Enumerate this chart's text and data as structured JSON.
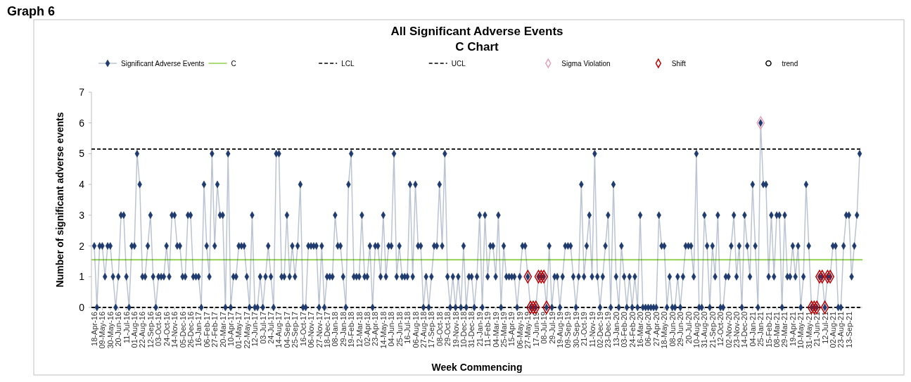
{
  "chart_data": {
    "type": "line",
    "title": "All Significant Adverse Events",
    "subtitle": "C Chart",
    "xlabel": "Week Commencing",
    "ylabel": "Number of significant adverse events",
    "annotations": [
      "Graph 6"
    ],
    "categories": [
      "18-Apr-16",
      null,
      null,
      "09-May-16",
      null,
      null,
      "30-May-16",
      null,
      null,
      "20-Jun-16",
      null,
      null,
      "11-Jul-16",
      null,
      null,
      "01-Aug-16",
      null,
      null,
      "22-Aug-16",
      null,
      null,
      "12-Sep-16",
      null,
      null,
      "03-Oct-16",
      null,
      null,
      "24-Oct-16",
      null,
      null,
      "14-Nov-16",
      null,
      null,
      "05-Dec-16",
      null,
      null,
      "26-Dec-16",
      null,
      null,
      "16-Jan-17",
      null,
      null,
      "06-Feb-17",
      null,
      null,
      "27-Feb-17",
      null,
      null,
      "20-Mar-17",
      null,
      null,
      "10-Apr-17",
      null,
      null,
      "01-May-17",
      null,
      null,
      "22-May-17",
      null,
      null,
      "12-Jun-17",
      null,
      null,
      "03-Jul-17",
      null,
      null,
      "24-Jul-17",
      null,
      null,
      "14-Aug-17",
      null,
      null,
      "04-Sep-17",
      null,
      null,
      "25-Sep-17",
      null,
      null,
      "16-Oct-17",
      null,
      null,
      "06-Nov-17",
      null,
      null,
      "27-Nov-17",
      null,
      null,
      "18-Dec-17",
      null,
      null,
      "08-Jan-18",
      null,
      null,
      "29-Jan-18",
      null,
      null,
      "19-Feb-18",
      null,
      null,
      "12-Mar-18",
      null,
      null,
      "02-Apr-18",
      null,
      null,
      "23-Apr-18",
      null,
      null,
      "14-May-18",
      null,
      null,
      "04-Jun-18",
      null,
      null,
      "25-Jun-18",
      null,
      null,
      "16-Jul-18",
      null,
      null,
      "06-Aug-18",
      null,
      null,
      "27-Aug-18",
      null,
      null,
      "17-Sep-18",
      null,
      null,
      "08-Oct-18",
      null,
      null,
      "29-Oct-18",
      null,
      null,
      "19-Nov-18",
      null,
      null,
      "10-Dec-18",
      null,
      null,
      "31-Dec-18",
      null,
      null,
      "21-Jan-19",
      null,
      null,
      "11-Feb-19",
      null,
      null,
      "04-Mar-19",
      null,
      null,
      "25-Mar-19",
      null,
      null,
      "15-Apr-19",
      null,
      null,
      "06-May-19",
      null,
      null,
      "27-May-19",
      null,
      null,
      "17-Jun-19",
      null,
      null,
      "08-Jul-19",
      null,
      null,
      "29-Jul-19",
      null,
      null,
      "19-Aug-19",
      null,
      null,
      "09-Sep-19",
      null,
      null,
      "30-Sep-19",
      null,
      null,
      "21-Oct-19",
      null,
      null,
      "11-Nov-19",
      null,
      null,
      "02-Dec-19",
      null,
      null,
      "23-Dec-19",
      null,
      null,
      "13-Jan-20",
      null,
      null,
      "03-Feb-20",
      null,
      null,
      "24-Feb-20",
      null,
      null,
      "16-Mar-20",
      null,
      null,
      "06-Apr-20",
      null,
      null,
      "27-Apr-20",
      null,
      null,
      "18-May-20",
      null,
      null,
      "08-Jun-20",
      null,
      null,
      "29-Jun-20",
      null,
      null,
      "20-Jul-20",
      null,
      null,
      "10-Aug-20",
      null,
      null,
      "31-Aug-20",
      null,
      null,
      "21-Sep-20",
      null,
      null,
      "12-Oct-20",
      null,
      null,
      "02-Nov-20",
      null,
      null,
      "23-Nov-20",
      null,
      null,
      "14-Dec-20",
      null,
      null,
      "04-Jan-21",
      null,
      null,
      "25-Jan-21",
      null,
      null,
      "15-Feb-21",
      null,
      null,
      "08-Mar-21",
      null,
      null,
      "29-Mar-21",
      null,
      null,
      "19-Apr-21",
      null,
      null,
      "10-May-21",
      null,
      null,
      "31-May-21",
      null,
      null,
      "21-Jun-21",
      null,
      null,
      "12-Jul-21",
      null,
      null,
      "02-Aug-21",
      null,
      null,
      "23-Aug-21",
      null,
      null,
      "13-Sep-21",
      null,
      null,
      null,
      null
    ],
    "series": [
      {
        "name": "Significant Adverse Events",
        "type": "line",
        "color": "#1f3b6e",
        "marker": "diamond",
        "values": [
          2,
          0,
          2,
          2,
          1,
          2,
          2,
          1,
          0,
          1,
          3,
          3,
          1,
          0,
          2,
          2,
          5,
          4,
          1,
          1,
          2,
          3,
          1,
          0,
          1,
          1,
          1,
          2,
          1,
          3,
          3,
          2,
          2,
          1,
          1,
          3,
          3,
          1,
          1,
          1,
          0,
          4,
          2,
          1,
          5,
          2,
          4,
          3,
          3,
          0,
          5,
          0,
          1,
          1,
          2,
          2,
          2,
          1,
          0,
          3,
          0,
          0,
          1,
          0,
          1,
          2,
          1,
          0,
          5,
          5,
          1,
          1,
          3,
          1,
          2,
          1,
          2,
          4,
          0,
          0,
          2,
          2,
          2,
          2,
          0,
          2,
          0,
          1,
          1,
          1,
          3,
          2,
          2,
          1,
          0,
          4,
          5,
          1,
          1,
          1,
          3,
          1,
          1,
          2,
          0,
          2,
          2,
          1,
          3,
          1,
          2,
          2,
          5,
          1,
          2,
          1,
          1,
          1,
          4,
          1,
          4,
          2,
          2,
          0,
          1,
          0,
          1,
          2,
          2,
          4,
          2,
          5,
          1,
          0,
          1,
          0,
          1,
          0,
          2,
          0,
          1,
          1,
          0,
          1,
          3,
          0,
          3,
          1,
          2,
          2,
          1,
          3,
          0,
          2,
          1,
          1,
          1,
          1,
          0,
          1,
          2,
          2,
          1,
          0,
          0,
          0,
          1,
          1,
          1,
          0,
          2,
          0,
          1,
          1,
          0,
          1,
          2,
          2,
          2,
          1,
          0,
          1,
          4,
          1,
          2,
          3,
          1,
          5,
          1,
          0,
          1,
          2,
          3,
          0,
          4,
          1,
          0,
          2,
          1,
          0,
          1,
          0,
          1,
          0,
          3,
          0,
          0,
          0,
          0,
          0,
          0,
          3,
          2,
          2,
          0,
          1,
          0,
          0,
          1,
          0,
          1,
          2,
          2,
          2,
          1,
          5,
          0,
          0,
          3,
          2,
          0,
          2,
          1,
          3,
          0,
          0,
          1,
          1,
          2,
          3,
          1,
          2,
          0,
          3,
          2,
          1,
          4,
          2,
          0,
          6,
          4,
          4,
          1,
          3,
          1,
          3,
          3,
          0,
          3,
          1,
          1,
          2,
          1,
          2,
          0,
          1,
          4,
          2,
          0,
          0,
          0,
          1,
          1,
          0,
          1,
          1,
          2,
          2,
          0,
          0,
          2,
          3,
          3,
          1,
          2,
          3,
          5
        ]
      },
      {
        "name": "Sigma Violation",
        "type": "scatter",
        "color": "#e8a0b8",
        "marker": "diamond",
        "values": [
          null,
          null,
          null,
          null,
          null,
          null,
          null,
          null,
          null,
          null,
          null,
          null,
          null,
          null,
          null,
          null,
          null,
          null,
          null,
          null,
          null,
          null,
          null,
          null,
          null,
          null,
          null,
          null,
          null,
          null,
          null,
          null,
          null,
          null,
          null,
          null,
          null,
          null,
          null,
          null,
          null,
          null,
          null,
          null,
          null,
          null,
          null,
          null,
          null,
          null,
          null,
          null,
          null,
          null,
          null,
          null,
          null,
          null,
          null,
          null,
          null,
          null,
          null,
          null,
          null,
          null,
          null,
          null,
          null,
          null,
          null,
          null,
          null,
          null,
          null,
          null,
          null,
          null,
          null,
          null,
          null,
          null,
          null,
          null,
          null,
          null,
          null,
          null,
          null,
          null,
          null,
          null,
          null,
          null,
          null,
          null,
          null,
          null,
          null,
          null,
          null,
          null,
          null,
          null,
          null,
          null,
          null,
          null,
          null,
          null,
          null,
          null,
          null,
          null,
          null,
          null,
          null,
          null,
          null,
          null,
          null,
          null,
          null,
          null,
          null,
          null,
          null,
          null,
          null,
          null,
          null,
          null,
          null,
          null,
          null,
          null,
          null,
          null,
          null,
          null,
          null,
          null,
          null,
          null,
          null,
          null,
          null,
          null,
          null,
          null,
          null,
          null,
          null,
          null,
          null,
          null,
          null,
          null,
          null,
          null,
          null,
          null,
          null,
          null,
          null,
          null,
          null,
          null,
          null,
          null,
          null,
          null,
          null,
          null,
          null,
          null,
          null,
          null,
          null,
          null,
          null,
          null,
          null,
          null,
          null,
          null,
          null,
          null,
          null,
          null,
          null,
          null,
          null,
          null,
          null,
          null,
          null,
          null,
          null,
          null,
          null,
          null,
          null,
          null,
          null,
          null,
          null,
          null,
          null,
          null,
          null,
          null,
          null,
          null,
          null,
          null,
          null,
          null,
          null,
          null,
          null,
          null,
          null,
          null,
          null,
          null,
          null,
          null,
          null,
          null,
          null,
          null,
          null,
          null,
          null,
          null,
          null,
          null,
          null,
          null,
          null,
          null,
          null,
          null,
          null,
          null,
          null,
          null,
          null,
          6,
          null,
          null,
          null,
          null,
          null,
          null,
          null,
          null,
          null,
          null,
          null,
          null,
          null,
          null,
          null,
          null,
          null,
          null,
          null,
          null,
          null,
          null,
          null,
          null,
          null,
          null,
          null,
          null,
          null,
          null,
          null,
          null,
          null,
          null,
          null,
          null,
          null
        ]
      },
      {
        "name": "Shift",
        "type": "scatter",
        "color": "#c00000",
        "marker": "diamond",
        "values": [
          null,
          null,
          null,
          null,
          null,
          null,
          null,
          null,
          null,
          null,
          null,
          null,
          null,
          null,
          null,
          null,
          null,
          null,
          null,
          null,
          null,
          null,
          null,
          null,
          null,
          null,
          null,
          null,
          null,
          null,
          null,
          null,
          null,
          null,
          null,
          null,
          null,
          null,
          null,
          null,
          null,
          null,
          null,
          null,
          null,
          null,
          null,
          null,
          null,
          null,
          null,
          null,
          null,
          null,
          null,
          null,
          null,
          null,
          null,
          null,
          null,
          null,
          null,
          null,
          null,
          null,
          null,
          null,
          null,
          null,
          null,
          null,
          null,
          null,
          null,
          null,
          null,
          null,
          null,
          null,
          null,
          null,
          null,
          null,
          null,
          null,
          null,
          null,
          null,
          null,
          null,
          null,
          null,
          null,
          null,
          null,
          null,
          null,
          null,
          null,
          null,
          null,
          null,
          null,
          null,
          null,
          null,
          null,
          null,
          null,
          null,
          null,
          null,
          null,
          null,
          null,
          null,
          null,
          null,
          null,
          null,
          null,
          null,
          null,
          null,
          null,
          null,
          null,
          null,
          null,
          null,
          null,
          null,
          null,
          null,
          null,
          null,
          null,
          null,
          null,
          null,
          null,
          null,
          null,
          null,
          null,
          null,
          null,
          null,
          null,
          null,
          null,
          null,
          null,
          null,
          null,
          null,
          null,
          null,
          null,
          null,
          null,
          1,
          0,
          0,
          0,
          1,
          1,
          1,
          0,
          null,
          null,
          null,
          null,
          null,
          null,
          null,
          null,
          null,
          null,
          null,
          null,
          null,
          null,
          null,
          null,
          null,
          null,
          null,
          null,
          null,
          null,
          null,
          null,
          null,
          null,
          null,
          null,
          null,
          null,
          null,
          null,
          null,
          null,
          null,
          null,
          null,
          null,
          null,
          null,
          null,
          null,
          null,
          null,
          null,
          null,
          null,
          null,
          null,
          null,
          null,
          null,
          null,
          null,
          null,
          null,
          null,
          null,
          null,
          null,
          null,
          null,
          null,
          null,
          null,
          null,
          null,
          null,
          null,
          null,
          null,
          null,
          null,
          null,
          null,
          null,
          null,
          null,
          null,
          null,
          null,
          null,
          null,
          null,
          null,
          null,
          null,
          null,
          null,
          null,
          null,
          null,
          null,
          null,
          null,
          null,
          null,
          null,
          0,
          0,
          0,
          1,
          1,
          0,
          1,
          1,
          null,
          null,
          null,
          null,
          null,
          null,
          null,
          null,
          null,
          null,
          null
        ]
      },
      {
        "name": "trend",
        "type": "scatter",
        "color": "#000000",
        "marker": "circle",
        "values": [
          null,
          null,
          null,
          null,
          null,
          null,
          null,
          null,
          null,
          null,
          null,
          null,
          null,
          null,
          null,
          null,
          null,
          null,
          null,
          null,
          null,
          null,
          null,
          null,
          null,
          null,
          null,
          null,
          null,
          null,
          null,
          null,
          null,
          null,
          null,
          null,
          null,
          null,
          null,
          null,
          null,
          null,
          null,
          null,
          null,
          null,
          null,
          null,
          null,
          null,
          null,
          null,
          null,
          null,
          null,
          null,
          null,
          null,
          null,
          null,
          null,
          null,
          null,
          null,
          null,
          null,
          null,
          null,
          null,
          null,
          null,
          null,
          null,
          null,
          null,
          null,
          null,
          null,
          null,
          null,
          null,
          null,
          null,
          null,
          null,
          null,
          null,
          null,
          null,
          null,
          null,
          null,
          null,
          null,
          null,
          null,
          null,
          null,
          null,
          null,
          null,
          null,
          null,
          null,
          null,
          null,
          null,
          null,
          null,
          null,
          null,
          null,
          null,
          null,
          null,
          null,
          null,
          null,
          null,
          null,
          null,
          null,
          null,
          null,
          null,
          null,
          null,
          null,
          null,
          null,
          null,
          null,
          null,
          null,
          null,
          null,
          null,
          null,
          null,
          null,
          null,
          null,
          null,
          null,
          null,
          null,
          null,
          null,
          null,
          null,
          null,
          null,
          null,
          null,
          null,
          null,
          null,
          null,
          null,
          null,
          null,
          null,
          null,
          null,
          null,
          null,
          null,
          null,
          null,
          null,
          null,
          null,
          null,
          null,
          null,
          null,
          null,
          null,
          null,
          null,
          null,
          null,
          null,
          null,
          null,
          null,
          null,
          null,
          null,
          null,
          null,
          null,
          null,
          null,
          null,
          null,
          null,
          null,
          null,
          null,
          null,
          null,
          null,
          null,
          null,
          null,
          null,
          null,
          null,
          null,
          null,
          null,
          null,
          null,
          null,
          null,
          null,
          null,
          null,
          null,
          null,
          null,
          null,
          null,
          null,
          null,
          null,
          null,
          null,
          null,
          null,
          null,
          null,
          null,
          null,
          null,
          null,
          null,
          null,
          null,
          null,
          null,
          null,
          null,
          null,
          null,
          null,
          null,
          null,
          null,
          null,
          null,
          null,
          null,
          null,
          null,
          null,
          null,
          null,
          null,
          null,
          null,
          null,
          null,
          null,
          null,
          null,
          null,
          null,
          null,
          null,
          null,
          null,
          null,
          null,
          null,
          null,
          null,
          null,
          null,
          null,
          null,
          null,
          null,
          null,
          null,
          null
        ]
      }
    ],
    "ref_lines": [
      {
        "axis": "y",
        "value": 1.55,
        "label": "C",
        "color": "#92d050",
        "line_style": "solid"
      },
      {
        "axis": "y",
        "value": 0,
        "label": "LCL",
        "color": "#000000",
        "line_style": "dashed"
      },
      {
        "axis": "y",
        "value": 5.15,
        "label": "UCL",
        "color": "#000000",
        "line_style": "dashed"
      }
    ],
    "ylim": [
      0,
      7
    ],
    "yticks": [
      0,
      1,
      2,
      3,
      4,
      5,
      6,
      7
    ],
    "grid": false,
    "legend": "top"
  }
}
